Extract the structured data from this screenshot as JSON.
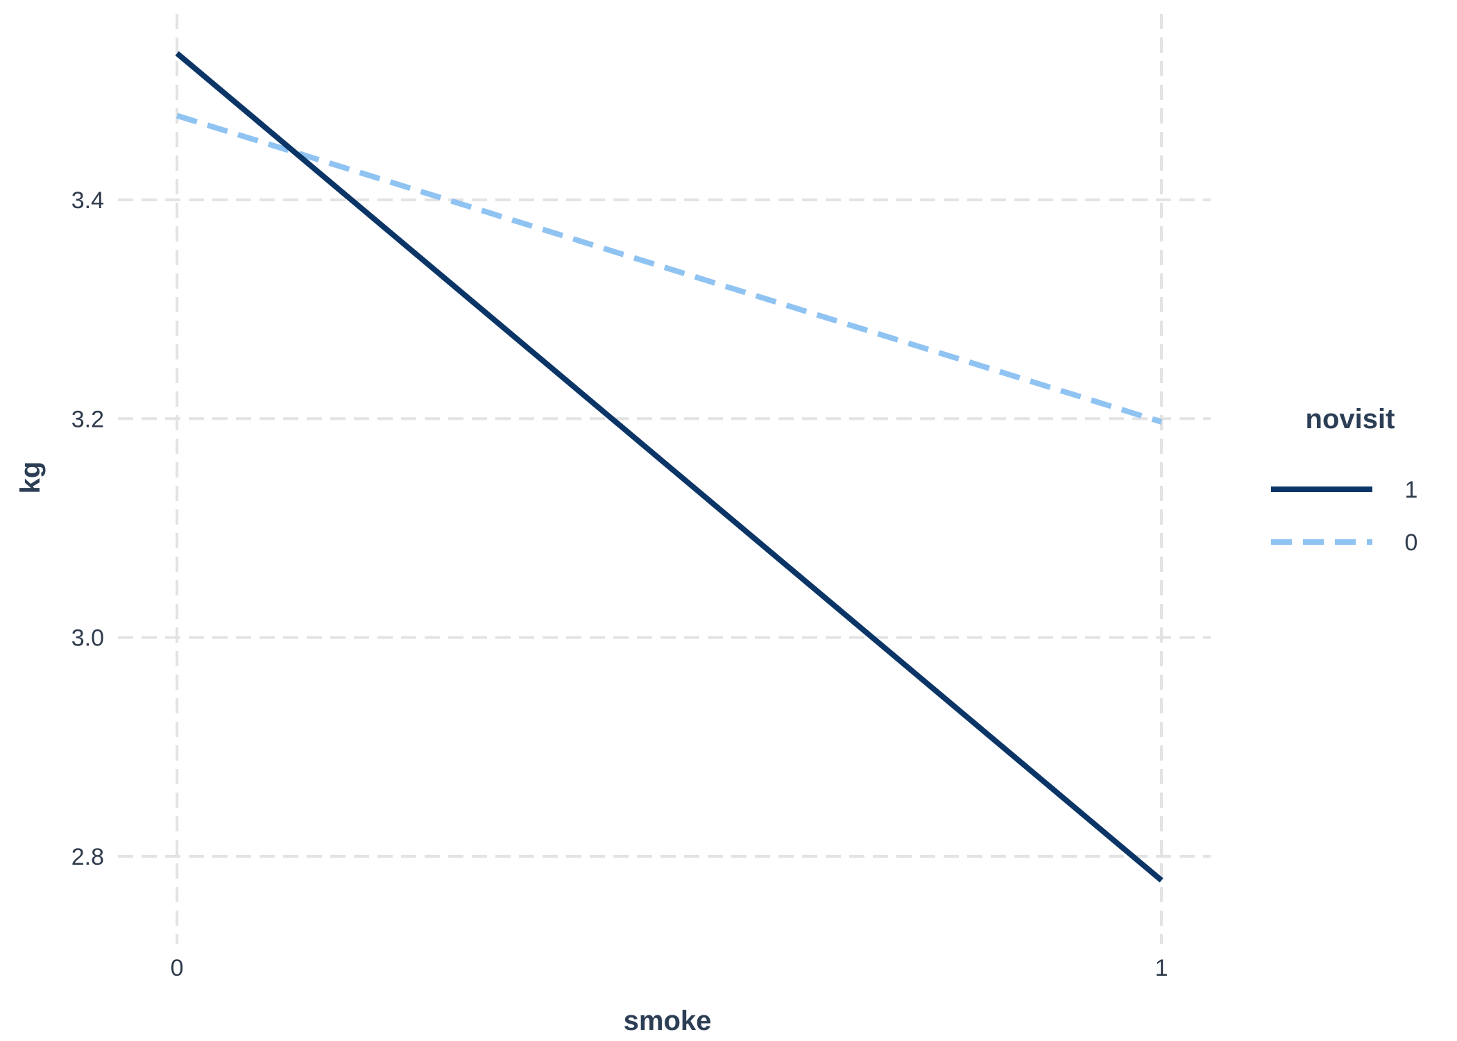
{
  "chart_data": {
    "type": "line",
    "xlabel": "smoke",
    "ylabel": "kg",
    "x": [
      0,
      1
    ],
    "x_ticks": [
      "0",
      "1"
    ],
    "y_ticks": [
      2.8,
      3.0,
      3.2,
      3.4
    ],
    "xlim": [
      -0.06,
      1.05
    ],
    "ylim": [
      2.72,
      3.57
    ],
    "grid": true,
    "legend": {
      "title": "novisit",
      "placement": "right"
    },
    "series": [
      {
        "name": "1",
        "values": [
          3.534,
          2.778
        ],
        "color": "#0b3566",
        "linestyle": "solid"
      },
      {
        "name": "0",
        "values": [
          3.477,
          3.197
        ],
        "color": "#8fc3f2",
        "linestyle": "dashed"
      }
    ]
  }
}
